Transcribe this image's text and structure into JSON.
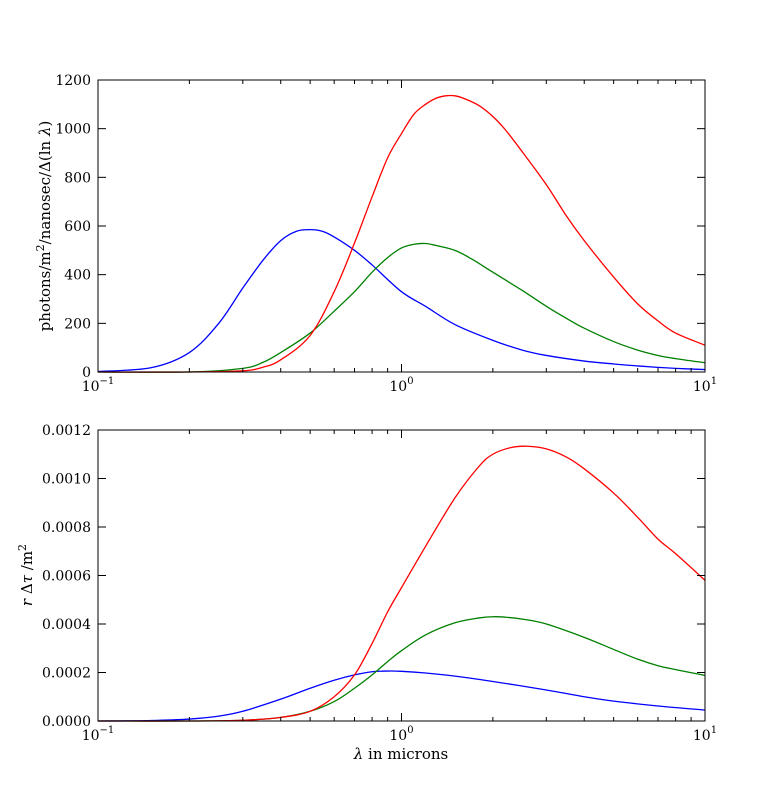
{
  "chart_data": [
    {
      "type": "line",
      "title": "",
      "xlabel": "",
      "ylabel_parts": {
        "prefix": "photons/m",
        "sup": "2",
        "middle": "/nanosec/Δ(ln ",
        "italic": "λ",
        "suffix": ")"
      },
      "xscale": "log",
      "xlim": [
        0.1,
        10
      ],
      "ylim": [
        0,
        1200
      ],
      "x_ticks": [
        {
          "value": 0.1,
          "base": "10",
          "exp": "−1"
        },
        {
          "value": 1,
          "base": "10",
          "exp": "0"
        },
        {
          "value": 10,
          "base": "10",
          "exp": "1"
        }
      ],
      "y_ticks": [
        {
          "value": 0,
          "label": "0"
        },
        {
          "value": 200,
          "label": "200"
        },
        {
          "value": 400,
          "label": "400"
        },
        {
          "value": 600,
          "label": "600"
        },
        {
          "value": 800,
          "label": "800"
        },
        {
          "value": 1000,
          "label": "1000"
        },
        {
          "value": 1200,
          "label": "1200"
        }
      ],
      "series": [
        {
          "name": "blue",
          "color": "#0000ff",
          "x": [
            0.1,
            0.15,
            0.2,
            0.25,
            0.3,
            0.35,
            0.4,
            0.45,
            0.5,
            0.55,
            0.6,
            0.7,
            0.8,
            1.0,
            1.2,
            1.5,
            2.0,
            2.5,
            3.0,
            4.0,
            5.0,
            6.0,
            7.0,
            8.0,
            10.0
          ],
          "y": [
            2,
            18,
            80,
            200,
            345,
            460,
            540,
            578,
            585,
            578,
            555,
            500,
            440,
            330,
            270,
            195,
            130,
            90,
            68,
            45,
            33,
            25,
            19,
            15,
            10
          ]
        },
        {
          "name": "green",
          "color": "#008000",
          "x": [
            0.1,
            0.2,
            0.3,
            0.35,
            0.4,
            0.5,
            0.6,
            0.7,
            0.8,
            0.9,
            1.0,
            1.1,
            1.2,
            1.3,
            1.5,
            1.7,
            2.0,
            2.5,
            3.0,
            3.5,
            4.0,
            5.0,
            6.0,
            7.0,
            8.0,
            10.0
          ],
          "y": [
            0,
            0,
            15,
            40,
            80,
            160,
            250,
            330,
            410,
            470,
            510,
            525,
            528,
            520,
            500,
            465,
            410,
            335,
            270,
            220,
            180,
            125,
            90,
            68,
            55,
            38
          ]
        },
        {
          "name": "red",
          "color": "#ff0000",
          "x": [
            0.1,
            0.2,
            0.3,
            0.35,
            0.4,
            0.5,
            0.6,
            0.7,
            0.8,
            0.9,
            1.0,
            1.1,
            1.2,
            1.3,
            1.4,
            1.5,
            1.6,
            1.8,
            2.0,
            2.2,
            2.5,
            3.0,
            3.5,
            4.0,
            5.0,
            6.0,
            7.0,
            8.0,
            10.0
          ],
          "y": [
            0,
            0,
            5,
            20,
            50,
            150,
            330,
            530,
            720,
            880,
            980,
            1060,
            1100,
            1125,
            1135,
            1135,
            1125,
            1095,
            1050,
            995,
            905,
            770,
            640,
            540,
            390,
            280,
            210,
            160,
            110
          ]
        }
      ]
    },
    {
      "type": "line",
      "title": "",
      "xlabel_parts": {
        "italic": "λ",
        "rest": " in microns"
      },
      "ylabel_parts": {
        "italic_r": "r",
        "delta": " Δ",
        "italic_tau": "τ",
        "rest": " /m",
        "sup": "2"
      },
      "xscale": "log",
      "xlim": [
        0.1,
        10
      ],
      "ylim": [
        0,
        0.0012
      ],
      "x_ticks": [
        {
          "value": 0.1,
          "base": "10",
          "exp": "−1"
        },
        {
          "value": 1,
          "base": "10",
          "exp": "0"
        },
        {
          "value": 10,
          "base": "10",
          "exp": "1"
        }
      ],
      "y_ticks": [
        {
          "value": 0,
          "label": "0.0000"
        },
        {
          "value": 0.0002,
          "label": "0.0002"
        },
        {
          "value": 0.0004,
          "label": "0.0004"
        },
        {
          "value": 0.0006,
          "label": "0.0006"
        },
        {
          "value": 0.0008,
          "label": "0.0008"
        },
        {
          "value": 0.001,
          "label": "0.0010"
        },
        {
          "value": 0.0012,
          "label": "0.0012"
        }
      ],
      "series": [
        {
          "name": "blue",
          "color": "#0000ff",
          "x": [
            0.1,
            0.15,
            0.2,
            0.25,
            0.3,
            0.4,
            0.5,
            0.6,
            0.7,
            0.8,
            0.9,
            1.0,
            1.2,
            1.5,
            2.0,
            3.0,
            4.0,
            5.0,
            7.0,
            10.0
          ],
          "y": [
            0,
            2e-06,
            8e-06,
            2e-05,
            4e-05,
            9e-05,
            0.000135,
            0.000168,
            0.00019,
            0.000203,
            0.000206,
            0.000205,
            0.000198,
            0.000185,
            0.000163,
            0.000128,
            0.0001,
            8.2e-05,
            6.2e-05,
            4.5e-05
          ]
        },
        {
          "name": "green",
          "color": "#008000",
          "x": [
            0.1,
            0.2,
            0.3,
            0.4,
            0.5,
            0.6,
            0.7,
            0.8,
            0.9,
            1.0,
            1.2,
            1.5,
            1.8,
            2.0,
            2.2,
            2.5,
            3.0,
            4.0,
            5.0,
            6.0,
            7.0,
            8.0,
            10.0
          ],
          "y": [
            0,
            0,
            3e-06,
            1.5e-05,
            4e-05,
            8e-05,
            0.000135,
            0.00019,
            0.000245,
            0.00029,
            0.000355,
            0.000405,
            0.000425,
            0.00043,
            0.000428,
            0.00042,
            0.0004,
            0.000345,
            0.000295,
            0.000255,
            0.000228,
            0.000212,
            0.000188
          ]
        },
        {
          "name": "red",
          "color": "#ff0000",
          "x": [
            0.1,
            0.2,
            0.3,
            0.4,
            0.5,
            0.6,
            0.7,
            0.8,
            0.9,
            1.0,
            1.2,
            1.5,
            1.8,
            2.0,
            2.3,
            2.6,
            3.0,
            3.5,
            4.0,
            5.0,
            6.0,
            7.0,
            8.0,
            10.0
          ],
          "y": [
            0,
            0,
            3e-06,
            1.5e-05,
            4e-05,
            0.0001,
            0.00019,
            0.00032,
            0.00045,
            0.00055,
            0.00072,
            0.00092,
            0.00105,
            0.0011,
            0.001128,
            0.001133,
            0.001122,
            0.001088,
            0.00104,
            0.00094,
            0.00084,
            0.00075,
            0.00069,
            0.00058
          ]
        }
      ]
    }
  ]
}
